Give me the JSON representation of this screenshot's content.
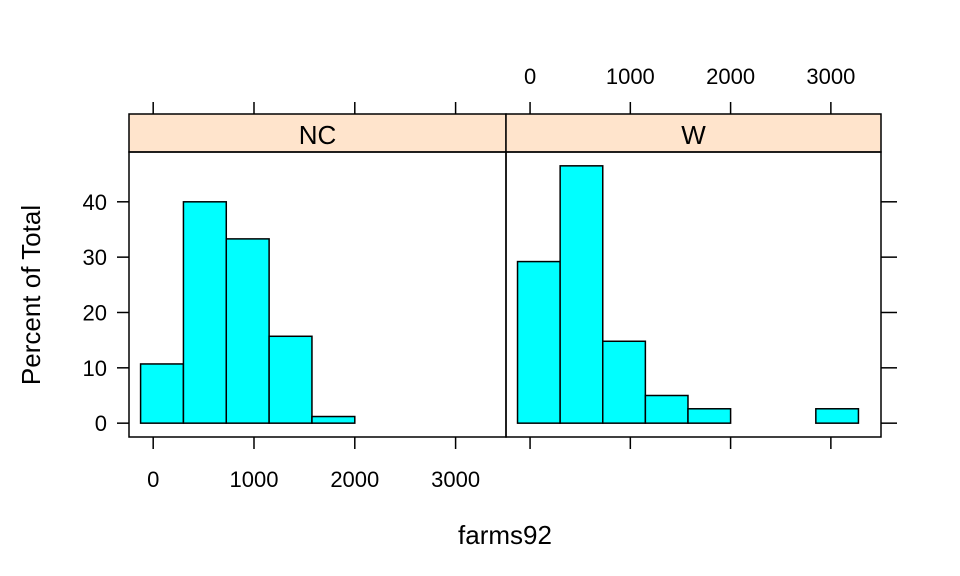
{
  "chart_data": {
    "type": "bar",
    "xlabel": "farms92",
    "ylabel": "Percent of Total",
    "xlim": [
      -240,
      3500
    ],
    "ylim": [
      -2.5,
      49
    ],
    "x_ticks": [
      0,
      1000,
      2000,
      3000
    ],
    "x_tick_labels": [
      "0",
      "1000",
      "2000",
      "3000"
    ],
    "y_ticks": [
      0,
      10,
      20,
      30,
      40
    ],
    "y_tick_labels": [
      "0",
      "10",
      "20",
      "30",
      "40"
    ],
    "bin_edges": [
      -125,
      300,
      725,
      1150,
      1575,
      2000,
      2425,
      2850,
      3275
    ],
    "strip_color": "#ffe4cc",
    "bar_color": "#00ffff",
    "panels": [
      {
        "name": "NC",
        "values": [
          10.7,
          40.0,
          33.3,
          15.7,
          1.2,
          0,
          0,
          0
        ]
      },
      {
        "name": "W",
        "values": [
          29.2,
          46.5,
          14.8,
          5.0,
          2.6,
          0,
          0,
          2.6
        ]
      }
    ]
  }
}
